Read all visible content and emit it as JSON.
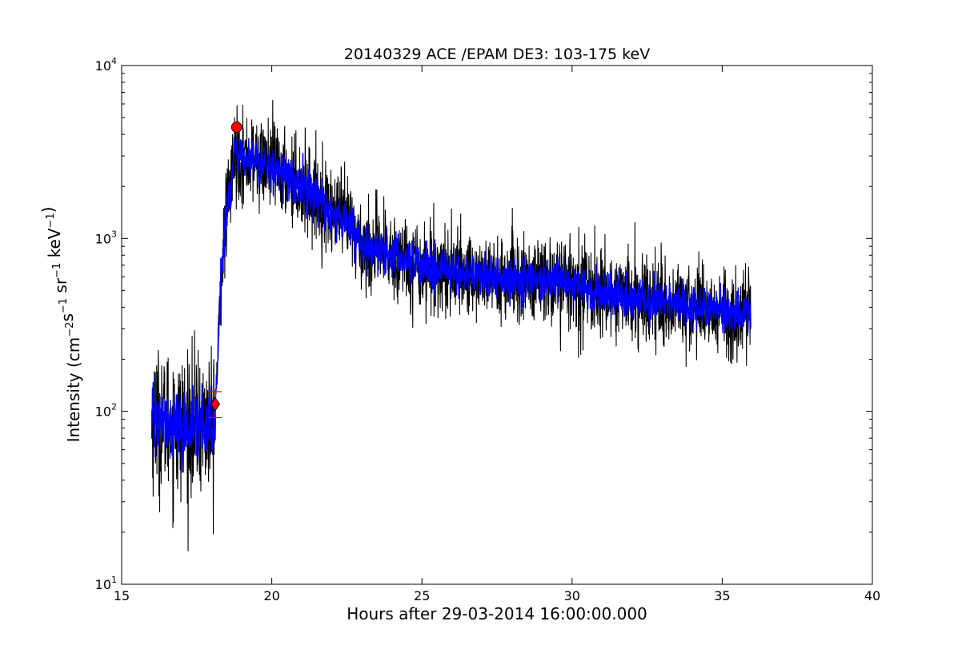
{
  "chart_data": {
    "type": "line",
    "title": "20140329 ACE /EPAM DE3: 103-175 keV",
    "xlabel": "Hours after 29-03-2014 16:00:00.000",
    "ylabel_text": "Intensity (cm",
    "ylabel_parts": [
      {
        "text": "Intensity (cm",
        "sup": false
      },
      {
        "text": "−2",
        "sup": true
      },
      {
        "text": "s",
        "sup": false
      },
      {
        "text": "−1",
        "sup": true
      },
      {
        "text": " sr",
        "sup": false
      },
      {
        "text": "−1",
        "sup": true
      },
      {
        "text": " keV",
        "sup": false
      },
      {
        "text": "−1",
        "sup": true
      },
      {
        "text": ")",
        "sup": false
      }
    ],
    "xlim": [
      15,
      40
    ],
    "ylim": [
      10,
      10000
    ],
    "yscale": "log",
    "grid": false,
    "x_ticks": [
      15,
      20,
      25,
      30,
      35,
      40
    ],
    "x_tick_labels": [
      "15",
      "20",
      "25",
      "30",
      "35",
      "40"
    ],
    "y_ticks": [
      {
        "base": "10",
        "exp": "1",
        "value": 10
      },
      {
        "base": "10",
        "exp": "2",
        "value": 100
      },
      {
        "base": "10",
        "exp": "3",
        "value": 1000
      },
      {
        "base": "10",
        "exp": "4",
        "value": 10000
      }
    ],
    "series": [
      {
        "role": "raw",
        "color": "#000000",
        "noise": 0.13,
        "x_range": [
          16.0,
          35.95
        ],
        "profile": [
          [
            16.0,
            90
          ],
          [
            16.5,
            85
          ],
          [
            17.0,
            82
          ],
          [
            17.5,
            85
          ],
          [
            18.05,
            84
          ],
          [
            18.12,
            100
          ],
          [
            18.2,
            200
          ],
          [
            18.3,
            550
          ],
          [
            18.4,
            900
          ],
          [
            18.5,
            1400
          ],
          [
            18.6,
            1900
          ],
          [
            18.7,
            2500
          ],
          [
            18.8,
            3200
          ],
          [
            18.95,
            3000
          ],
          [
            19.1,
            2900
          ],
          [
            19.5,
            2800
          ],
          [
            20.0,
            2600
          ],
          [
            20.5,
            2300
          ],
          [
            21.0,
            2000
          ],
          [
            21.5,
            1700
          ],
          [
            22.0,
            1400
          ],
          [
            22.3,
            1350
          ],
          [
            22.6,
            1200
          ],
          [
            23.0,
            900
          ],
          [
            23.5,
            850
          ],
          [
            24.0,
            800
          ],
          [
            24.5,
            760
          ],
          [
            25.0,
            680
          ],
          [
            26.0,
            640
          ],
          [
            27.0,
            600
          ],
          [
            28.0,
            580
          ],
          [
            29.0,
            560
          ],
          [
            29.5,
            590
          ],
          [
            30.0,
            540
          ],
          [
            31.0,
            480
          ],
          [
            32.0,
            450
          ],
          [
            33.0,
            430
          ],
          [
            34.0,
            410
          ],
          [
            35.0,
            380
          ],
          [
            35.95,
            360
          ]
        ]
      },
      {
        "role": "smoothed",
        "color": "#0000ff",
        "noise": 0.06,
        "x_range": [
          16.0,
          35.95
        ],
        "profile": [
          [
            16.0,
            90
          ],
          [
            16.5,
            85
          ],
          [
            17.0,
            82
          ],
          [
            17.5,
            85
          ],
          [
            18.05,
            84
          ],
          [
            18.12,
            100
          ],
          [
            18.2,
            200
          ],
          [
            18.3,
            550
          ],
          [
            18.4,
            900
          ],
          [
            18.5,
            1400
          ],
          [
            18.6,
            1900
          ],
          [
            18.7,
            2500
          ],
          [
            18.8,
            3200
          ],
          [
            18.95,
            3000
          ],
          [
            19.1,
            2900
          ],
          [
            19.5,
            2800
          ],
          [
            20.0,
            2600
          ],
          [
            20.5,
            2300
          ],
          [
            21.0,
            2000
          ],
          [
            21.5,
            1700
          ],
          [
            22.0,
            1400
          ],
          [
            22.3,
            1350
          ],
          [
            22.6,
            1200
          ],
          [
            23.0,
            900
          ],
          [
            23.5,
            850
          ],
          [
            24.0,
            800
          ],
          [
            24.5,
            760
          ],
          [
            25.0,
            680
          ],
          [
            26.0,
            640
          ],
          [
            27.0,
            600
          ],
          [
            28.0,
            580
          ],
          [
            29.0,
            560
          ],
          [
            29.5,
            590
          ],
          [
            30.0,
            540
          ],
          [
            31.0,
            480
          ],
          [
            32.0,
            450
          ],
          [
            33.0,
            430
          ],
          [
            34.0,
            410
          ],
          [
            35.0,
            380
          ],
          [
            35.95,
            360
          ]
        ]
      }
    ],
    "markers": [
      {
        "role": "onset",
        "shape": "diamond",
        "x": 18.12,
        "y": 110,
        "color": "#ff0000",
        "error": [
          92,
          130
        ]
      },
      {
        "role": "peak",
        "shape": "circle",
        "x": 18.83,
        "y": 4400,
        "color": "#ff0000"
      }
    ]
  }
}
